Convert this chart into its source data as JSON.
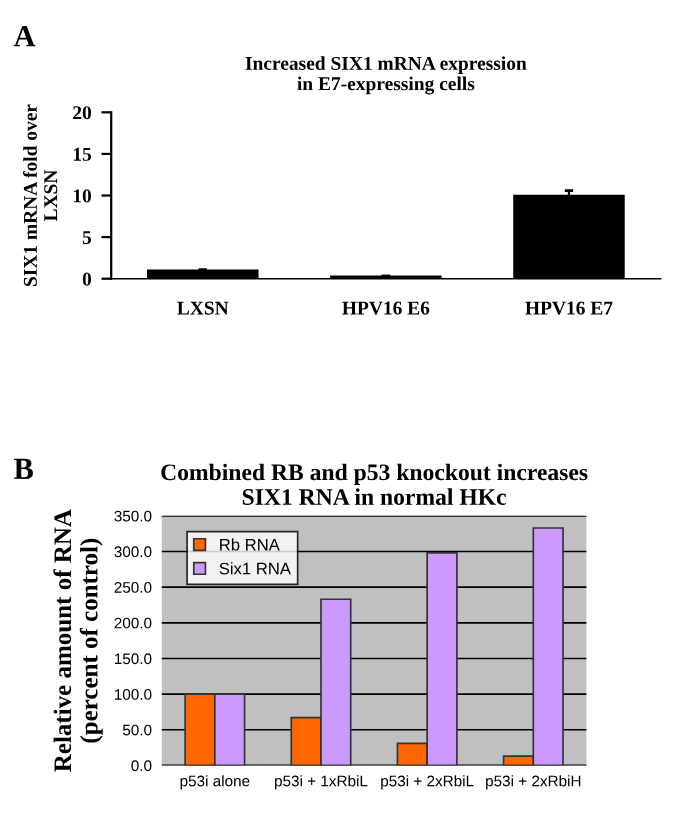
{
  "chart_data": [
    {
      "type": "bar",
      "title": "Increased SIX1 mRNA expression\nin E7-expressing cells",
      "ylabel": "SIX1 mRNA fold over\nLXSN",
      "annotations": [
        "A"
      ],
      "categories": [
        "LXSN",
        "HPV16 E6",
        "HPV16 E7"
      ],
      "series": [
        {
          "color": "#000000",
          "values": [
            1.0,
            0.3,
            10.0
          ],
          "errors": [
            0.1,
            null,
            0.6
          ]
        }
      ],
      "ylim": [
        0,
        20
      ],
      "yticks": [
        0,
        5,
        10,
        15,
        20
      ],
      "grid": false,
      "legend": false
    },
    {
      "type": "bar",
      "title": "Combined RB and p53 knockout increases\nSIX1 RNA in normal HKc",
      "ylabel": "Relative amount of RNA\n(percent of control)",
      "annotations": [
        "B"
      ],
      "categories": [
        "p53i alone",
        "p53i + 1xRbiL",
        "p53i + 2xRbiL",
        "p53i + 2xRbiH"
      ],
      "series": [
        {
          "name": "Rb RNA",
          "color": "#ff6600",
          "values": [
            100,
            67,
            31,
            13
          ]
        },
        {
          "name": "Six1 RNA",
          "color": "#cc99ff",
          "values": [
            100,
            233,
            298,
            333
          ]
        }
      ],
      "ylim": [
        0,
        350
      ],
      "yticks": [
        {
          "value": 0,
          "label": "0.0"
        },
        {
          "value": 50,
          "label": "50.0"
        },
        {
          "value": 100,
          "label": "100.0"
        },
        {
          "value": 150,
          "label": "150.0"
        },
        {
          "value": 200,
          "label": "200.0"
        },
        {
          "value": 250,
          "label": "250.0"
        },
        {
          "value": 300,
          "label": "300.0"
        },
        {
          "value": 350,
          "label": "350.0"
        }
      ],
      "grid": "y",
      "legend": "top left"
    }
  ]
}
